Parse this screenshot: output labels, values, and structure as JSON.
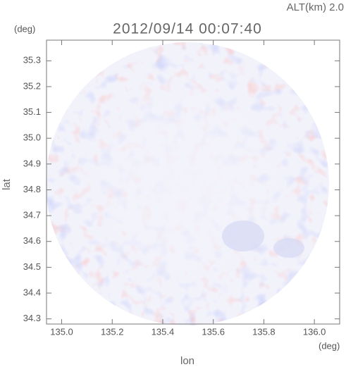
{
  "chart_data": {
    "type": "pcolor",
    "title": "2012/09/14 00:07:40",
    "subtitle": "ALT(km) 2.0",
    "x_label": "lon",
    "y_label": "lat",
    "x_unit": "(deg)",
    "y_unit": "(deg)",
    "xlim": [
      134.94,
      136.1
    ],
    "ylim": [
      34.28,
      35.38
    ],
    "xticks": [
      {
        "value": 135,
        "label": "135.0"
      },
      135.2,
      135.4,
      135.6,
      135.8,
      {
        "value": 136,
        "label": "136.0"
      }
    ],
    "yticks": [
      34.3,
      34.4,
      34.5,
      34.6,
      34.7,
      34.8,
      34.9,
      {
        "value": 35,
        "label": "35.0"
      },
      35.1,
      35.2,
      35.3
    ]
  }
}
